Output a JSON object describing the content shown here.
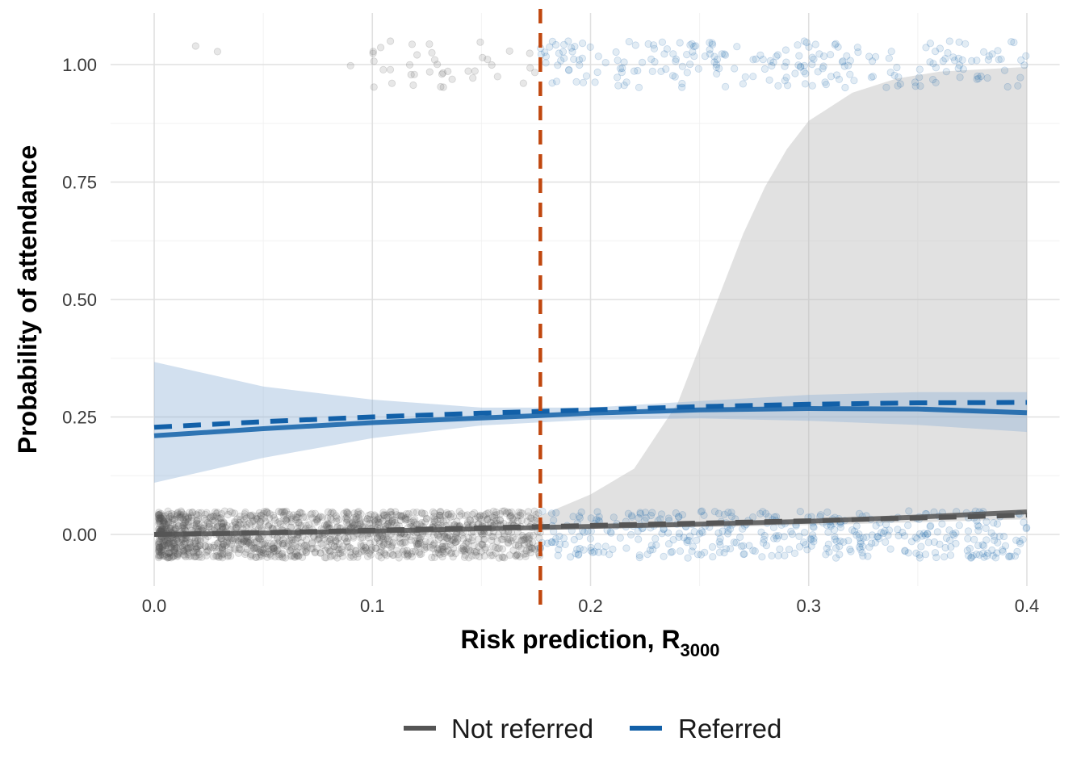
{
  "chart_data": {
    "type": "scatter",
    "title": "",
    "xlabel": "Risk prediction, R",
    "xlabel_subscript": "3000",
    "ylabel": "Probability of attendance",
    "xlim": [
      -0.02,
      0.415
    ],
    "ylim": [
      -0.11,
      1.11
    ],
    "x_ticks": [
      0.0,
      0.1,
      0.2,
      0.3,
      0.4
    ],
    "x_tick_labels": [
      "0.0",
      "0.1",
      "0.2",
      "0.3",
      "0.4"
    ],
    "y_ticks": [
      0.0,
      0.25,
      0.5,
      0.75,
      1.0
    ],
    "y_tick_labels": [
      "0.00",
      "0.25",
      "0.50",
      "0.75",
      "1.00"
    ],
    "grid": true,
    "threshold": {
      "x": 0.177,
      "color": "#c0470f",
      "style": "dashed"
    },
    "legend": {
      "position": "bottom",
      "entries": [
        {
          "name": "Not referred",
          "color": "#555555"
        },
        {
          "name": "Referred",
          "color": "#1260a8"
        }
      ]
    },
    "series": [
      {
        "name": "Not referred",
        "color": "#555555",
        "fit_solid": {
          "x": [
            0.0,
            0.05,
            0.1,
            0.15,
            0.2,
            0.25,
            0.3,
            0.35,
            0.4
          ],
          "y": [
            0.0,
            0.003,
            0.007,
            0.012,
            0.017,
            0.022,
            0.028,
            0.037,
            0.048
          ]
        },
        "fit_dashed": {
          "x": [
            0.0,
            0.05,
            0.1,
            0.15,
            0.2,
            0.25,
            0.3,
            0.35,
            0.4
          ],
          "y": [
            0.0,
            0.004,
            0.009,
            0.014,
            0.019,
            0.024,
            0.029,
            0.035,
            0.041
          ]
        },
        "ci_band": {
          "x": [
            0.177,
            0.2,
            0.22,
            0.24,
            0.25,
            0.26,
            0.27,
            0.28,
            0.29,
            0.3,
            0.32,
            0.34,
            0.36,
            0.38,
            0.4
          ],
          "lower": [
            0.012,
            0.013,
            0.014,
            0.015,
            0.016,
            0.016,
            0.017,
            0.018,
            0.019,
            0.02,
            0.022,
            0.025,
            0.027,
            0.03,
            0.032
          ],
          "upper": [
            0.04,
            0.085,
            0.14,
            0.28,
            0.4,
            0.52,
            0.64,
            0.74,
            0.82,
            0.88,
            0.94,
            0.97,
            0.985,
            0.99,
            0.995
          ]
        }
      },
      {
        "name": "Referred",
        "color": "#1260a8",
        "fit_solid": {
          "x": [
            0.0,
            0.05,
            0.1,
            0.15,
            0.177,
            0.2,
            0.25,
            0.3,
            0.35,
            0.4
          ],
          "y": [
            0.21,
            0.225,
            0.238,
            0.248,
            0.253,
            0.258,
            0.265,
            0.268,
            0.267,
            0.259
          ]
        },
        "fit_dashed": {
          "x": [
            0.0,
            0.05,
            0.1,
            0.15,
            0.2,
            0.25,
            0.3,
            0.35,
            0.4
          ],
          "y": [
            0.228,
            0.24,
            0.25,
            0.258,
            0.265,
            0.272,
            0.277,
            0.28,
            0.281
          ]
        },
        "ci_band": {
          "x": [
            0.0,
            0.05,
            0.1,
            0.15,
            0.2,
            0.25,
            0.3,
            0.35,
            0.4
          ],
          "lower": [
            0.11,
            0.163,
            0.205,
            0.232,
            0.244,
            0.247,
            0.242,
            0.233,
            0.218
          ],
          "upper": [
            0.367,
            0.315,
            0.287,
            0.27,
            0.27,
            0.284,
            0.297,
            0.303,
            0.303
          ]
        }
      }
    ]
  }
}
